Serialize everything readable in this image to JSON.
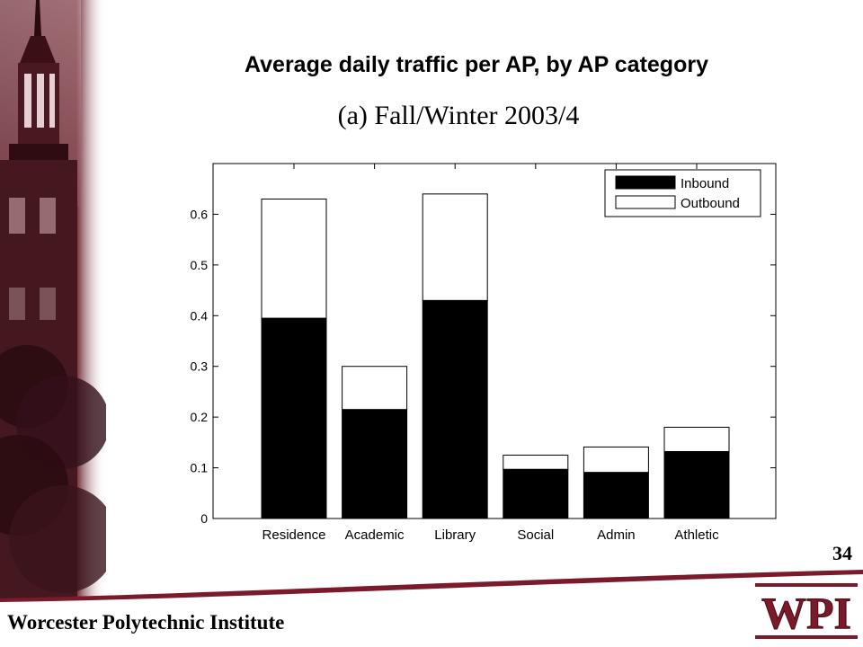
{
  "slide": {
    "title": "Average daily traffic per AP, by AP category",
    "slide_number": "34",
    "footer": "Worcester Polytechnic Institute",
    "logo_text": "WPI"
  },
  "colors": {
    "brand_maroon": "#7a1a2a",
    "photo_dark": "#3a1016",
    "photo_mid": "#8a4a52"
  },
  "chart_data": {
    "type": "bar",
    "stacked": true,
    "title": "(a) Fall/Winter 2003/4",
    "categories": [
      "Residence",
      "Academic",
      "Library",
      "Social",
      "Admin",
      "Athletic"
    ],
    "series": [
      {
        "name": "Inbound",
        "color": "#000000",
        "values": [
          0.395,
          0.215,
          0.43,
          0.097,
          0.091,
          0.132
        ]
      },
      {
        "name": "Outbound",
        "color": "#ffffff",
        "values": [
          0.235,
          0.085,
          0.21,
          0.028,
          0.05,
          0.048
        ]
      }
    ],
    "ylim": [
      0,
      0.7
    ],
    "yticks": [
      "0",
      "0.1",
      "0.2",
      "0.3",
      "0.4",
      "0.5",
      "0.6"
    ],
    "grid": false,
    "legend_position": "top-right"
  }
}
